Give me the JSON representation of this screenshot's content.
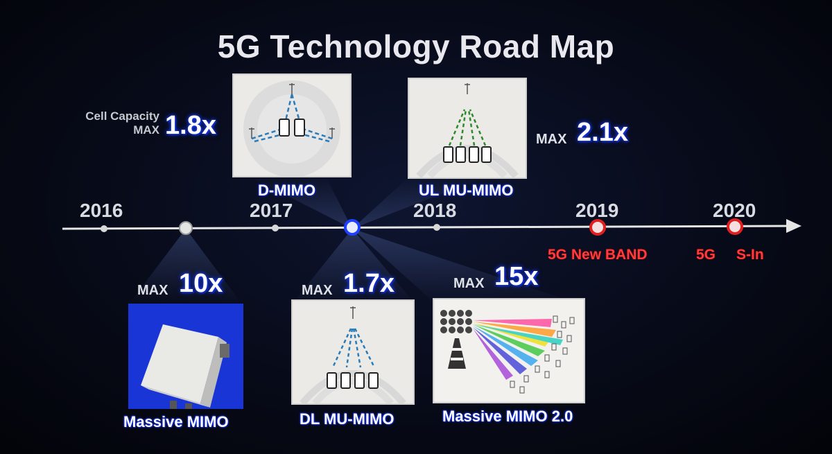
{
  "title": "5G Technology Road Map",
  "timeline": {
    "years": [
      "2016",
      "2017",
      "2018",
      "2019",
      "2020"
    ],
    "events_below": [
      "5G New BAND",
      "5G",
      "S-In"
    ]
  },
  "technologies": [
    {
      "name": "D-MIMO",
      "max_label": "Cell Capacity",
      "max_prefix": "MAX",
      "multiplier": "1.8x"
    },
    {
      "name": "UL MU-MIMO",
      "max_prefix": "MAX",
      "multiplier": "2.1x"
    },
    {
      "name": "Massive MIMO",
      "max_prefix": "MAX",
      "multiplier": "10x"
    },
    {
      "name": "DL MU-MIMO",
      "max_prefix": "MAX",
      "multiplier": "1.7x"
    },
    {
      "name": "Massive MIMO 2.0",
      "max_prefix": "MAX",
      "multiplier": "15x"
    }
  ],
  "colors": {
    "accent_blue": "#1b3cff",
    "event_red": "#ff3b3b",
    "timeline": "#e6e6e6"
  },
  "icons": [
    "antenna-icon",
    "smartphone-icon",
    "base-station-icon",
    "arrow-icon"
  ]
}
